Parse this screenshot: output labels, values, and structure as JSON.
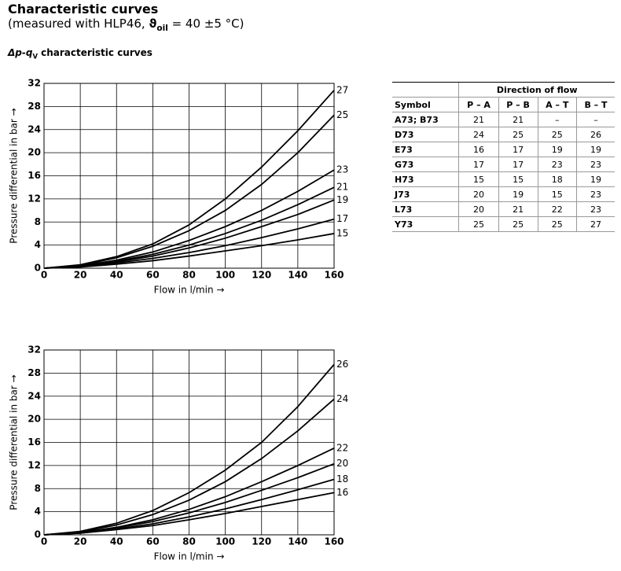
{
  "header": {
    "title": "Characteristic curves",
    "subtitle": {
      "before": "(measured with HLP46, ",
      "symbol": "ϑ",
      "subscript": "oil",
      "after": " = 40 ±5 °C)"
    }
  },
  "section_title": {
    "main": "Δp-q",
    "subscript": "V",
    "after": " characteristic curves"
  },
  "chart_data": [
    {
      "type": "line",
      "x_label": "Flow in l/min →",
      "y_label": "Pressure differential in bar →",
      "x": [
        0,
        20,
        40,
        60,
        80,
        100,
        120,
        140,
        160
      ],
      "xlim": [
        0,
        160
      ],
      "xticks": [
        0,
        20,
        40,
        60,
        80,
        100,
        120,
        140,
        160
      ],
      "ylim": [
        0,
        32
      ],
      "yticks": [
        0,
        4,
        8,
        12,
        16,
        20,
        24,
        28,
        32
      ],
      "grid": true,
      "series": [
        {
          "name": "27",
          "color": "#000000",
          "values": [
            0,
            0.6,
            2,
            4.2,
            7.5,
            12,
            17.5,
            23.8,
            30.8
          ]
        },
        {
          "name": "25",
          "color": "#000000",
          "values": [
            0,
            0.5,
            1.8,
            3.8,
            6.5,
            10,
            14.5,
            20,
            26.5
          ]
        },
        {
          "name": "23",
          "color": "#000000",
          "values": [
            0,
            0.4,
            1.4,
            2.8,
            4.8,
            7.2,
            10,
            13.3,
            17
          ]
        },
        {
          "name": "21",
          "color": "#000000",
          "values": [
            0,
            0.4,
            1.2,
            2.4,
            4,
            6,
            8.3,
            11,
            14
          ]
        },
        {
          "name": "19",
          "color": "#000000",
          "values": [
            0,
            0.3,
            1.1,
            2.1,
            3.5,
            5.2,
            7.2,
            9.3,
            11.8
          ]
        },
        {
          "name": "17",
          "color": "#000000",
          "values": [
            0,
            0.3,
            0.9,
            1.7,
            2.7,
            3.9,
            5.3,
            6.8,
            8.5
          ]
        },
        {
          "name": "15",
          "color": "#000000",
          "values": [
            0,
            0.2,
            0.7,
            1.3,
            2.1,
            3,
            3.9,
            4.9,
            6
          ]
        }
      ]
    },
    {
      "type": "line",
      "x_label": "Flow in l/min →",
      "y_label": "Pressure differential in bar →",
      "x": [
        0,
        20,
        40,
        60,
        80,
        100,
        120,
        140,
        160
      ],
      "xlim": [
        0,
        160
      ],
      "xticks": [
        0,
        20,
        40,
        60,
        80,
        100,
        120,
        140,
        160
      ],
      "ylim": [
        0,
        32
      ],
      "yticks": [
        0,
        4,
        8,
        12,
        16,
        20,
        24,
        28,
        32
      ],
      "grid": true,
      "series": [
        {
          "name": "26",
          "color": "#000000",
          "values": [
            0,
            0.6,
            2,
            4.2,
            7.3,
            11.2,
            16,
            22.2,
            29.5
          ]
        },
        {
          "name": "24",
          "color": "#000000",
          "values": [
            0,
            0.5,
            1.7,
            3.5,
            6,
            9.2,
            13.2,
            18,
            23.5
          ]
        },
        {
          "name": "22",
          "color": "#000000",
          "values": [
            0,
            0.4,
            1.3,
            2.6,
            4.4,
            6.6,
            9.2,
            12,
            15
          ]
        },
        {
          "name": "20",
          "color": "#000000",
          "values": [
            0,
            0.4,
            1.2,
            2.3,
            3.8,
            5.6,
            7.7,
            9.9,
            12.3
          ]
        },
        {
          "name": "18",
          "color": "#000000",
          "values": [
            0,
            0.3,
            1,
            1.9,
            3.1,
            4.5,
            6.1,
            7.8,
            9.6
          ]
        },
        {
          "name": "16",
          "color": "#000000",
          "values": [
            0,
            0.3,
            0.9,
            1.6,
            2.6,
            3.7,
            4.9,
            6.1,
            7.3
          ]
        }
      ]
    }
  ],
  "table": {
    "group_header": "Direction of flow",
    "columns": [
      "Symbol",
      "P – A",
      "P – B",
      "A – T",
      "B – T"
    ],
    "rows": [
      [
        "A73; B73",
        21,
        21,
        "–",
        "–"
      ],
      [
        "D73",
        24,
        25,
        25,
        26
      ],
      [
        "E73",
        16,
        17,
        19,
        19
      ],
      [
        "G73",
        17,
        17,
        23,
        23
      ],
      [
        "H73",
        15,
        15,
        18,
        19
      ],
      [
        "J73",
        20,
        19,
        15,
        23
      ],
      [
        "L73",
        20,
        21,
        22,
        23
      ],
      [
        "Y73",
        25,
        25,
        25,
        27
      ]
    ]
  }
}
